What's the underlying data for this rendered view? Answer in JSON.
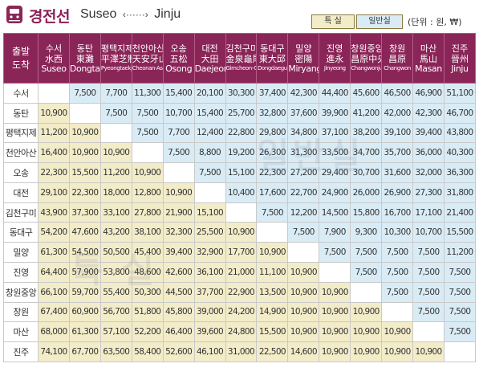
{
  "header": {
    "title_ko": "경전선",
    "origin": "Suseo",
    "destination": "Jinju",
    "route_arrow": "‹······›",
    "legend_special": "특 실",
    "legend_normal": "일반실",
    "unit": "(단위 : 원, ₩)",
    "icon": "train-icon",
    "accent_color": "#8a2558"
  },
  "table": {
    "corner_label": [
      "출발",
      "도착"
    ],
    "stations": [
      {
        "ko": "수서",
        "hanja": "水西",
        "roman": "Suseo"
      },
      {
        "ko": "동탄",
        "hanja": "東灘",
        "roman": "Dongtan"
      },
      {
        "ko": "평택지제",
        "hanja": "平澤芝制",
        "roman": "Pyeongtaekjije"
      },
      {
        "ko": "천안아산",
        "hanja": "天安牙山",
        "roman": "Cheonan-Asan"
      },
      {
        "ko": "오송",
        "hanja": "五松",
        "roman": "Osong"
      },
      {
        "ko": "대전",
        "hanja": "大田",
        "roman": "Daejeon"
      },
      {
        "ko": "김천구미",
        "hanja": "金泉龜尾",
        "roman": "Gimcheon-Gumi"
      },
      {
        "ko": "동대구",
        "hanja": "東大邱",
        "roman": "Dongdaegu"
      },
      {
        "ko": "밀양",
        "hanja": "密陽",
        "roman": "Miryang"
      },
      {
        "ko": "진영",
        "hanja": "進永",
        "roman": "Jinyeong"
      },
      {
        "ko": "창원중앙",
        "hanja": "昌原中央",
        "roman": "Changwonjungang"
      },
      {
        "ko": "창원",
        "hanja": "昌原",
        "roman": "Changwon"
      },
      {
        "ko": "마산",
        "hanja": "馬山",
        "roman": "Masan"
      },
      {
        "ko": "진주",
        "hanja": "晉州",
        "roman": "Jinju"
      }
    ],
    "rows": [
      {
        "station": "수서",
        "fares": [
          "",
          "7,500",
          "7,700",
          "11,300",
          "15,400",
          "20,100",
          "30,300",
          "37,400",
          "42,300",
          "44,400",
          "45,600",
          "46,500",
          "46,900",
          "51,100"
        ]
      },
      {
        "station": "동탄",
        "fares": [
          "10,900",
          "",
          "7,500",
          "7,500",
          "10,700",
          "15,400",
          "25,700",
          "32,800",
          "37,600",
          "39,900",
          "41,200",
          "42,000",
          "42,300",
          "46,700"
        ]
      },
      {
        "station": "평택지제",
        "fares": [
          "11,200",
          "10,900",
          "",
          "7,500",
          "7,700",
          "12,400",
          "22,800",
          "29,800",
          "34,800",
          "37,100",
          "38,200",
          "39,100",
          "39,400",
          "43,800"
        ]
      },
      {
        "station": "천안아산",
        "fares": [
          "16,400",
          "10,900",
          "10,900",
          "",
          "7,500",
          "8,800",
          "19,200",
          "26,300",
          "31,300",
          "33,500",
          "34,700",
          "35,700",
          "36,000",
          "40,300"
        ]
      },
      {
        "station": "오송",
        "fares": [
          "22,300",
          "15,500",
          "11,200",
          "10,900",
          "",
          "7,500",
          "15,100",
          "22,300",
          "27,200",
          "29,400",
          "30,700",
          "31,600",
          "32,000",
          "36,300"
        ]
      },
      {
        "station": "대전",
        "fares": [
          "29,100",
          "22,300",
          "18,000",
          "12,800",
          "10,900",
          "",
          "10,400",
          "17,600",
          "22,700",
          "24,900",
          "26,000",
          "26,900",
          "27,300",
          "31,800"
        ]
      },
      {
        "station": "김천구미",
        "fares": [
          "43,900",
          "37,300",
          "33,100",
          "27,800",
          "21,900",
          "15,100",
          "",
          "7,500",
          "12,200",
          "14,500",
          "15,800",
          "16,700",
          "17,100",
          "21,400"
        ]
      },
      {
        "station": "동대구",
        "fares": [
          "54,200",
          "47,600",
          "43,200",
          "38,100",
          "32,300",
          "25,500",
          "10,900",
          "",
          "7,500",
          "7,900",
          "9,300",
          "10,300",
          "10,700",
          "15,500"
        ]
      },
      {
        "station": "밀양",
        "fares": [
          "61,300",
          "54,500",
          "50,500",
          "45,400",
          "39,400",
          "32,900",
          "17,700",
          "10,900",
          "",
          "7,500",
          "7,500",
          "7,500",
          "7,500",
          "11,200"
        ]
      },
      {
        "station": "진영",
        "fares": [
          "64,400",
          "57,900",
          "53,800",
          "48,600",
          "42,600",
          "36,100",
          "21,000",
          "11,100",
          "10,900",
          "",
          "7,500",
          "7,500",
          "7,500",
          "7,500"
        ]
      },
      {
        "station": "창원중앙",
        "fares": [
          "66,100",
          "59,700",
          "55,400",
          "50,300",
          "44,500",
          "37,700",
          "22,900",
          "13,500",
          "10,900",
          "10,900",
          "",
          "7,500",
          "7,500",
          "7,500"
        ]
      },
      {
        "station": "창원",
        "fares": [
          "67,400",
          "60,900",
          "56,700",
          "51,800",
          "45,800",
          "39,000",
          "24,200",
          "14,900",
          "10,900",
          "10,900",
          "10,900",
          "",
          "7,500",
          "7,500"
        ]
      },
      {
        "station": "마산",
        "fares": [
          "68,000",
          "61,300",
          "57,100",
          "52,200",
          "46,400",
          "39,600",
          "24,800",
          "15,500",
          "10,900",
          "10,900",
          "10,900",
          "10,900",
          "",
          "7,500"
        ]
      },
      {
        "station": "진주",
        "fares": [
          "74,100",
          "67,700",
          "63,500",
          "58,400",
          "52,600",
          "46,100",
          "31,000",
          "22,500",
          "14,600",
          "10,900",
          "10,900",
          "10,900",
          "10,900",
          ""
        ]
      }
    ]
  },
  "watermarks": {
    "normal": "일반실",
    "special": "특 실"
  },
  "colors": {
    "special_class_bg": "#f3ecc9",
    "normal_class_bg": "#d9ecf6",
    "header_bg": "#8a2558"
  }
}
